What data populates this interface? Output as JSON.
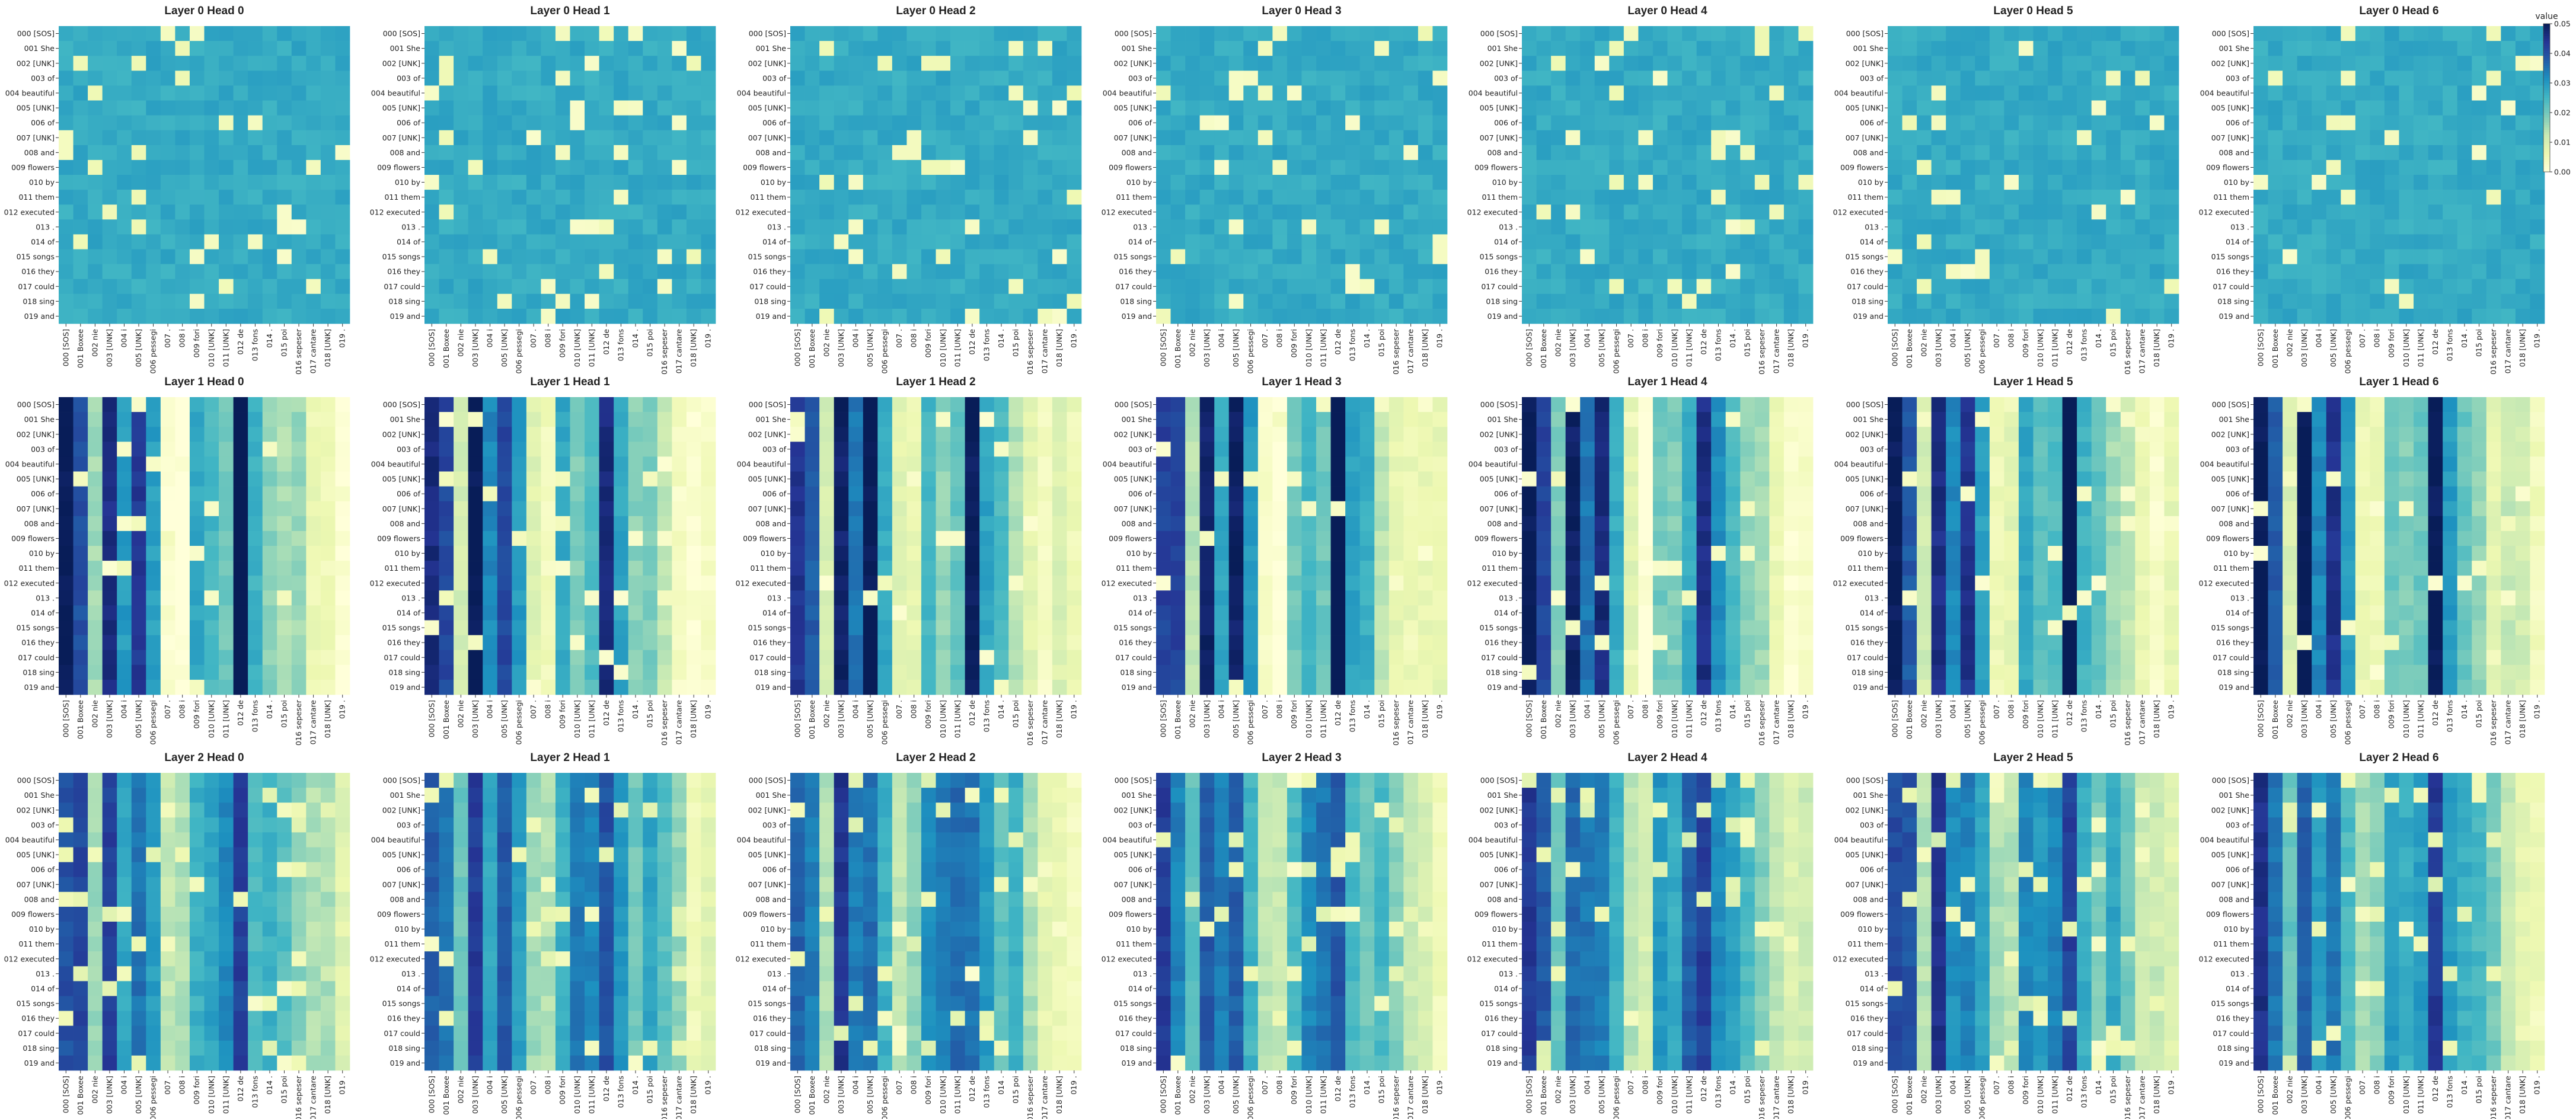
{
  "chart_data": {
    "type": "heatmap",
    "layers": [
      0,
      1,
      2
    ],
    "heads": [
      0,
      1,
      2,
      3,
      4,
      5,
      6
    ],
    "title_template": "Layer {layer} Head {head}",
    "y_tokens": [
      "000 [SOS]",
      "001 She",
      "002 [UNK]",
      "003 of",
      "004 beautiful",
      "005 [UNK]",
      "006 of",
      "007 [UNK]",
      "008 and",
      "009 flowers",
      "010 by",
      "011 them",
      "012 executed",
      "013 .",
      "014 of",
      "015 songs",
      "016 they",
      "017 could",
      "018 sing",
      "019 and"
    ],
    "x_tokens": [
      "000 [SOS]",
      "001 Boxee",
      "002 nie",
      "003 [UNK]",
      "004 i",
      "005 [UNK]",
      "006 pessegi",
      "007 .",
      "008 i",
      "009 fori",
      "010 [UNK]",
      "011 [UNK]",
      "012 de",
      "013 fons",
      "014 .",
      "015 poi",
      "016 sepeser",
      "017 cantare",
      "018 [UNK]",
      "019 ."
    ],
    "colorbar": {
      "label": "value",
      "ticks": [
        "0.00",
        "0.01",
        "0.02",
        "0.03",
        "0.04",
        "0.05"
      ],
      "min": 0,
      "max": 0.05
    },
    "colormap": [
      "#ffffd9",
      "#edf8b1",
      "#c7e9b4",
      "#7fcdbb",
      "#41b6c4",
      "#1d91c0",
      "#225ea8",
      "#253494",
      "#081d58"
    ],
    "layer_patterns": {
      "0": "near-uniform ~0.028 with sparse low cells",
      "1": "strong column structure; dark columns 000, 001, 003, 005, 012",
      "2": "moderate column structure with scattered low cells"
    }
  }
}
